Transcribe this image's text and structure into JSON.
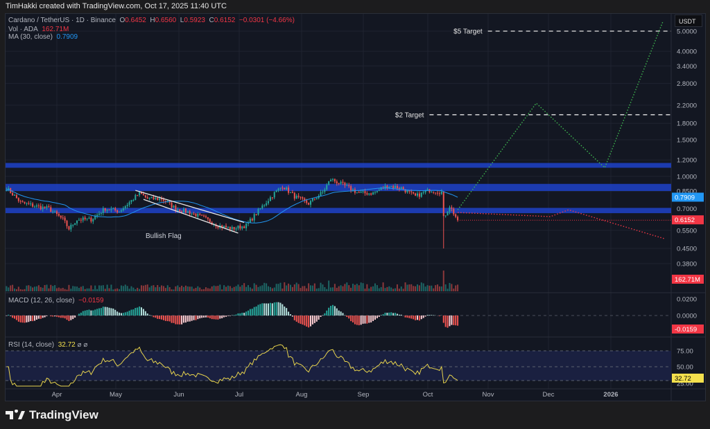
{
  "caption": "TimHakki created with TradingView.com, Oct 17, 2025 11:40 UTC",
  "legend": {
    "symbol": "Cardano / TetherUS · 1D · Binance",
    "o_label": "O",
    "o": "0.6452",
    "h_label": "H",
    "h": "0.6560",
    "l_label": "L",
    "l": "0.5923",
    "c_label": "C",
    "c": "0.6152",
    "change": "−0.0301 (−4.66%)",
    "vol_label": "Vol · ADA",
    "vol": "162.71M",
    "ma_label": "MA (30, close)",
    "ma": "0.7909",
    "macd_label": "MACD (12, 26, close)",
    "macd": "−0.0159",
    "rsi_label": "RSI (14, close)",
    "rsi": "32.72"
  },
  "currency": "USDT",
  "brand": "TradingView",
  "colors": {
    "up": "#26a69a",
    "down": "#ef5350",
    "ma": "#2196f3",
    "zone": "#1e3fbf",
    "rsi": "#e8d44d",
    "bg": "#131722"
  },
  "chart_data": {
    "type": "candlestick",
    "scale": "log",
    "grid": true,
    "price_ticks": [
      "5.0000",
      "4.0000",
      "3.4000",
      "2.8000",
      "2.2000",
      "1.8000",
      "1.5000",
      "1.2000",
      "1.0000",
      "0.8500",
      "0.7000",
      "0.5500",
      "0.4500",
      "0.3800"
    ],
    "x_ticks": [
      "Apr",
      "May",
      "Jun",
      "Jul",
      "Aug",
      "Sep",
      "Oct",
      "Nov",
      "Dec",
      "2026"
    ],
    "badges": {
      "ma": "0.7909",
      "close": "0.6152",
      "volume": "162.71M",
      "macd": "-0.0159",
      "rsi": "32.72"
    },
    "macd_ticks": [
      "0.0200",
      "0.0000"
    ],
    "rsi_ticks": [
      "75.00",
      "50.00",
      "25.00"
    ],
    "closes": [
      [
        "2025-03-07",
        0.88
      ],
      [
        "2025-03-14",
        0.75
      ],
      [
        "2025-03-21",
        0.72
      ],
      [
        "2025-03-28",
        0.7
      ],
      [
        "2025-04-04",
        0.62
      ],
      [
        "2025-04-07",
        0.56
      ],
      [
        "2025-04-11",
        0.62
      ],
      [
        "2025-04-18",
        0.62
      ],
      [
        "2025-04-25",
        0.7
      ],
      [
        "2025-05-02",
        0.68
      ],
      [
        "2025-05-09",
        0.78
      ],
      [
        "2025-05-12",
        0.83
      ],
      [
        "2025-05-16",
        0.78
      ],
      [
        "2025-05-23",
        0.78
      ],
      [
        "2025-05-30",
        0.7
      ],
      [
        "2025-06-06",
        0.67
      ],
      [
        "2025-06-13",
        0.63
      ],
      [
        "2025-06-20",
        0.58
      ],
      [
        "2025-06-27",
        0.56
      ],
      [
        "2025-07-04",
        0.58
      ],
      [
        "2025-07-11",
        0.7
      ],
      [
        "2025-07-18",
        0.83
      ],
      [
        "2025-07-22",
        0.9
      ],
      [
        "2025-07-28",
        0.8
      ],
      [
        "2025-08-04",
        0.74
      ],
      [
        "2025-08-11",
        0.84
      ],
      [
        "2025-08-15",
        0.97
      ],
      [
        "2025-08-22",
        0.9
      ],
      [
        "2025-08-29",
        0.83
      ],
      [
        "2025-09-05",
        0.83
      ],
      [
        "2025-09-12",
        0.9
      ],
      [
        "2025-09-19",
        0.88
      ],
      [
        "2025-09-26",
        0.8
      ],
      [
        "2025-10-03",
        0.86
      ],
      [
        "2025-10-09",
        0.84
      ],
      [
        "2025-10-10",
        0.63
      ],
      [
        "2025-10-13",
        0.72
      ],
      [
        "2025-10-17",
        0.6152
      ]
    ],
    "zones": [
      [
        1.1,
        1.16
      ],
      [
        0.85,
        0.92
      ],
      [
        0.665,
        0.705
      ]
    ],
    "targets": [
      {
        "label": "$5 Target",
        "price": 5.0,
        "from": "2025-11-01"
      },
      {
        "label": "$2 Target",
        "price": 1.98,
        "from": "2025-10-03"
      }
    ],
    "bullish_flag": {
      "label": "Bullish Flag",
      "upper": [
        [
          "2025-05-10",
          0.856
        ],
        [
          "2025-07-03",
          0.6
        ]
      ],
      "lower": [
        [
          "2025-05-14",
          0.775
        ],
        [
          "2025-06-30",
          0.533
        ]
      ]
    },
    "projection_bull": [
      [
        "2025-10-17",
        0.69
      ],
      [
        "2025-11-25",
        2.25
      ],
      [
        "2025-12-29",
        1.1
      ],
      [
        "2026-01-27",
        5.6
      ]
    ],
    "projection_bear": [
      [
        "2025-10-17",
        0.67
      ],
      [
        "2025-12-02",
        0.64
      ],
      [
        "2025-12-11",
        0.69
      ],
      [
        "2026-01-28",
        0.5
      ]
    ]
  }
}
